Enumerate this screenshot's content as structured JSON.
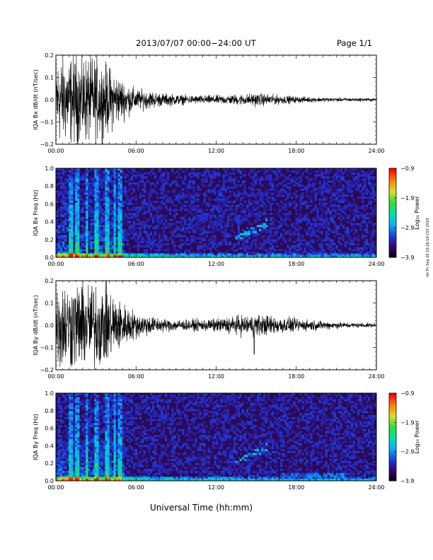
{
  "header": {
    "title": "2013/07/07  00:00−24:00 UT",
    "page": "Page 1/1"
  },
  "footer": {
    "xaxis_title": "Universal Time (hh:mm)",
    "stamp": "ntt Fri Sep 20 10:26:10 CST 2019"
  },
  "colors": {
    "waveform": "#000000",
    "spectrogram_background": "#2a0a55",
    "colormap": [
      "#000000",
      "#3a0070",
      "#1f3ad8",
      "#00b0ff",
      "#00e0b0",
      "#30e030",
      "#d8e020",
      "#ff8000",
      "#ff0000"
    ]
  },
  "chart_data": [
    {
      "id": "bx-waveform",
      "type": "line",
      "ylabel": "IQA Bx dB/dt (nT/sec)",
      "xlim": [
        0,
        24
      ],
      "ylim": [
        -0.2,
        0.2
      ],
      "yticks": [
        "0.2",
        "0.1",
        "0.0",
        "−0.1",
        "−0.2"
      ],
      "xticks": [
        "00:00",
        "06:00",
        "12:00",
        "18:00",
        "24:00"
      ],
      "envelope": {
        "x_hours": [
          0,
          1,
          2,
          3,
          4,
          5,
          6,
          8,
          10,
          12,
          14,
          15,
          16,
          18,
          20,
          22,
          24
        ],
        "amplitude": [
          0.2,
          0.2,
          0.2,
          0.19,
          0.15,
          0.09,
          0.05,
          0.03,
          0.02,
          0.02,
          0.025,
          0.03,
          0.025,
          0.015,
          0.01,
          0.008,
          0.008
        ]
      }
    },
    {
      "id": "bx-spectrogram",
      "type": "heatmap",
      "ylabel": "IQA Bx Freq (Hz)",
      "xlim": [
        0,
        24
      ],
      "ylim": [
        0.0,
        1.0
      ],
      "yticks": [
        "1.0",
        "0.8",
        "0.6",
        "0.4",
        "0.2",
        "0.0"
      ],
      "xticks": [
        "00:00",
        "06:00",
        "12:00",
        "18:00",
        "24:00"
      ],
      "colorbar": {
        "label": "Log₁₀ Power",
        "ticks": [
          "−0.9",
          "−1.9",
          "−2.9",
          "−3.9"
        ],
        "range": [
          -3.9,
          -0.9
        ]
      },
      "bursts_hours": [
        1.1,
        1.6,
        2.3,
        3.0,
        3.8,
        4.4,
        4.8
      ]
    },
    {
      "id": "by-waveform",
      "type": "line",
      "ylabel": "IQA By dB/dt (nT/sec)",
      "xlim": [
        0,
        24
      ],
      "ylim": [
        -0.2,
        0.2
      ],
      "yticks": [
        "0.2",
        "0.1",
        "0.0",
        "−0.1",
        "−0.2"
      ],
      "xticks": [
        "00:00",
        "06:00",
        "12:00",
        "18:00",
        "24:00"
      ],
      "envelope": {
        "x_hours": [
          0,
          1,
          2,
          3,
          4,
          5,
          6,
          8,
          10,
          12,
          13,
          14,
          15,
          16,
          18,
          20,
          22,
          24
        ],
        "amplitude": [
          0.2,
          0.2,
          0.2,
          0.2,
          0.17,
          0.1,
          0.06,
          0.03,
          0.025,
          0.03,
          0.04,
          0.045,
          0.05,
          0.045,
          0.03,
          0.02,
          0.012,
          0.01
        ]
      }
    },
    {
      "id": "by-spectrogram",
      "type": "heatmap",
      "ylabel": "IQA By Freq (Hz)",
      "xlim": [
        0,
        24
      ],
      "ylim": [
        0.0,
        1.0
      ],
      "yticks": [
        "1.0",
        "0.8",
        "0.6",
        "0.4",
        "0.2",
        "0.0"
      ],
      "xticks": [
        "00:00",
        "06:00",
        "12:00",
        "18:00",
        "24:00"
      ],
      "colorbar": {
        "label": "Log₁₀ Power",
        "ticks": [
          "−0.9",
          "−1.9",
          "−2.9",
          "−3.9"
        ],
        "range": [
          -3.9,
          -0.9
        ]
      },
      "bursts_hours": [
        1.1,
        1.6,
        2.3,
        3.0,
        3.8,
        4.4,
        4.8
      ]
    }
  ]
}
